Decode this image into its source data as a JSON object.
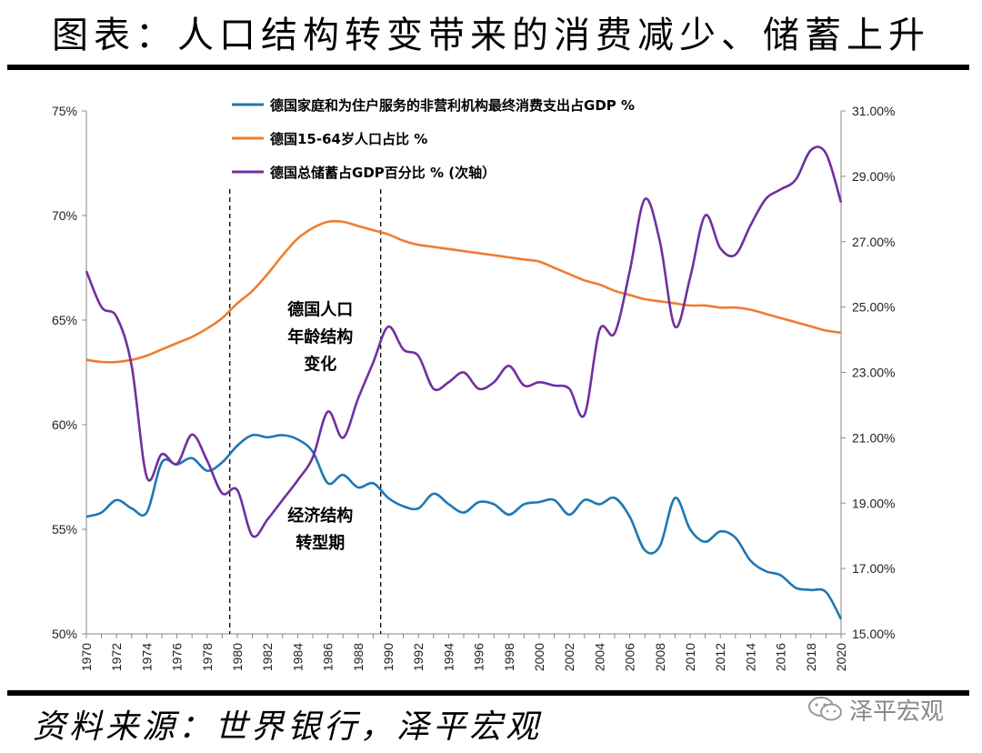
{
  "page": {
    "title": "图表：人口结构转变带来的消费减少、储蓄上升",
    "source": "资料来源：世界银行，泽平宏观",
    "watermark": "泽平宏观"
  },
  "chart_data": {
    "type": "line",
    "x": [
      1970,
      1971,
      1972,
      1973,
      1974,
      1975,
      1976,
      1977,
      1978,
      1979,
      1980,
      1981,
      1982,
      1983,
      1984,
      1985,
      1986,
      1987,
      1988,
      1989,
      1990,
      1991,
      1992,
      1993,
      1994,
      1995,
      1996,
      1997,
      1998,
      1999,
      2000,
      2001,
      2002,
      2003,
      2004,
      2005,
      2006,
      2007,
      2008,
      2009,
      2010,
      2011,
      2012,
      2013,
      2014,
      2015,
      2016,
      2017,
      2018,
      2019,
      2020
    ],
    "x_ticks": [
      "1970",
      "1972",
      "1974",
      "1976",
      "1978",
      "1980",
      "1982",
      "1984",
      "1986",
      "1988",
      "1990",
      "1992",
      "1994",
      "1996",
      "1998",
      "2000",
      "2002",
      "2004",
      "2006",
      "2008",
      "2010",
      "2012",
      "2014",
      "2016",
      "2018",
      "2020"
    ],
    "y_left": {
      "ylim": [
        50,
        75
      ],
      "ticks": [
        "50%",
        "55%",
        "60%",
        "65%",
        "70%",
        "75%"
      ]
    },
    "y_right": {
      "ylim": [
        15,
        31
      ],
      "ticks": [
        "15.00%",
        "17.00%",
        "19.00%",
        "21.00%",
        "23.00%",
        "25.00%",
        "27.00%",
        "29.00%",
        "31.00%"
      ]
    },
    "series": [
      {
        "name": "德国家庭和为住户服务的非营利机构最终消费支出占GDP %",
        "axis": "left",
        "color": "#1F77B4",
        "values": [
          55.6,
          55.8,
          56.4,
          56.0,
          55.8,
          58.2,
          58.1,
          58.4,
          57.8,
          58.2,
          59.0,
          59.5,
          59.4,
          59.5,
          59.3,
          58.7,
          57.2,
          57.6,
          57.0,
          57.2,
          56.5,
          56.1,
          56.0,
          56.7,
          56.2,
          55.8,
          56.3,
          56.2,
          55.7,
          56.2,
          56.3,
          56.4,
          55.7,
          56.4,
          56.2,
          56.5,
          55.6,
          54.0,
          54.2,
          56.5,
          55.0,
          54.4,
          54.9,
          54.6,
          53.5,
          53.0,
          52.8,
          52.2,
          52.1,
          52.0,
          50.7
        ]
      },
      {
        "name": "德国15-64岁人口占比 %",
        "axis": "left",
        "color": "#ED7D31",
        "values": [
          63.1,
          63.0,
          63.0,
          63.1,
          63.3,
          63.6,
          63.9,
          64.2,
          64.6,
          65.1,
          65.8,
          66.4,
          67.2,
          68.1,
          68.9,
          69.4,
          69.7,
          69.7,
          69.5,
          69.3,
          69.1,
          68.8,
          68.6,
          68.5,
          68.4,
          68.3,
          68.2,
          68.1,
          68.0,
          67.9,
          67.8,
          67.5,
          67.2,
          66.9,
          66.7,
          66.4,
          66.2,
          66.0,
          65.9,
          65.8,
          65.7,
          65.7,
          65.6,
          65.6,
          65.5,
          65.3,
          65.1,
          64.9,
          64.7,
          64.5,
          64.4
        ]
      },
      {
        "name": "德国总储蓄占GDP百分比 % (次轴）",
        "axis": "right",
        "color": "#7030A0",
        "values": [
          26.1,
          25.0,
          24.7,
          23.2,
          19.8,
          20.5,
          20.2,
          21.1,
          20.3,
          19.3,
          19.4,
          18.0,
          18.5,
          19.1,
          19.7,
          20.4,
          21.8,
          21.0,
          22.2,
          23.3,
          24.4,
          23.7,
          23.5,
          22.5,
          22.7,
          23.0,
          22.5,
          22.7,
          23.2,
          22.6,
          22.7,
          22.6,
          22.5,
          21.7,
          24.3,
          24.2,
          26.1,
          28.3,
          27.0,
          24.4,
          25.9,
          27.8,
          26.8,
          26.6,
          27.5,
          28.3,
          28.6,
          28.9,
          29.8,
          29.7,
          28.2
        ]
      }
    ],
    "annotations": [
      {
        "text": [
          "德国人口",
          "年龄结构",
          "变化"
        ],
        "x": 1985.5,
        "y_left": 64.2
      },
      {
        "text": [
          "经济结构",
          "转型期"
        ],
        "x": 1985.5,
        "y_left": 55.0
      }
    ],
    "vlines": [
      1979.5,
      1989.5
    ]
  }
}
